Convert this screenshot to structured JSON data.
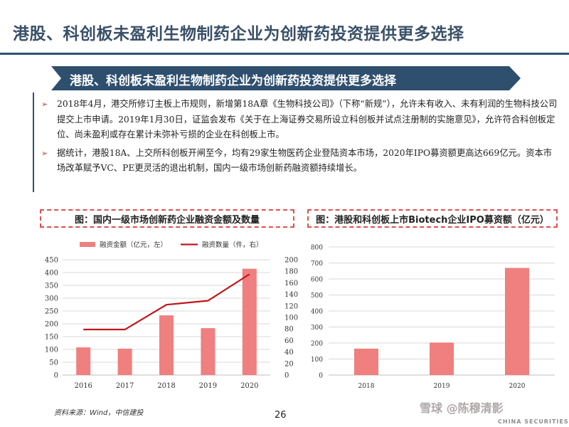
{
  "header": {
    "title": "港股、科创板未盈利生物制药企业为创新药投资提供更多选择",
    "banner": "港股、科创板未盈利生物制药企业为创新药投资提供更多选择"
  },
  "bullets": [
    "2018年4月，港交所修订主板上市规则，新增第18A章《生物科技公司》（下称“新规”），允许未有收入、未有利润的生物科技公司提交上市申请。2019年1月30日，证监会发布《关于在上海证券交易所设立科创板并试点注册制的实施意见》，允许符合科创板定位、尚未盈利或存在累计未弥补亏损的企业在科创板上市。",
    "据统计，港股18A、上交所科创板开闸至今，均有29家生物医药企业登陆资本市场，2020年IPO募资额更高达669亿元。资本市场改革赋予VC、PE更灵活的退出机制，国内一级市场创新药融资额持续增长。"
  ],
  "chart_data": [
    {
      "type": "bar+line",
      "title": "图：国内一级市场创新药企业融资金额及数量",
      "categories": [
        "2016",
        "2017",
        "2018",
        "2019",
        "2020"
      ],
      "series": [
        {
          "name": "融资金额（亿元，左）",
          "type": "bar",
          "axis": "left",
          "values": [
            108,
            103,
            233,
            183,
            415
          ],
          "color": "#f07f7f"
        },
        {
          "name": "融资数量（件，右）",
          "type": "line",
          "axis": "right",
          "values": [
            79,
            79,
            122,
            129,
            175
          ],
          "color": "#c0161b"
        }
      ],
      "y_left": {
        "min": 0,
        "max": 450,
        "ticks": [
          "0",
          "50",
          "100",
          "150",
          "200",
          "250",
          "300",
          "350",
          "400",
          "450"
        ]
      },
      "y_right": {
        "min": 0,
        "max": 200,
        "ticks": [
          "0",
          "20",
          "40",
          "60",
          "80",
          "100",
          "120",
          "140",
          "160",
          "180",
          "200"
        ]
      },
      "legend_position": "top",
      "grid": true
    },
    {
      "type": "bar",
      "title": "图：港股和科创板上市Biotech企业IPO募资额（亿元）",
      "categories": [
        "2018",
        "2019",
        "2020"
      ],
      "values": [
        165,
        203,
        669
      ],
      "color": "#f07f7f",
      "ylim": [
        0,
        800
      ],
      "ticks": [
        "0",
        "100",
        "200",
        "300",
        "400",
        "500",
        "600",
        "700",
        "800"
      ],
      "grid": true
    }
  ],
  "footer": {
    "source": "资料来源：Wind，中信建投",
    "page_number": "26",
    "watermark": "雪球 @陈穆清影",
    "watermark_sub": "CHINA SECURITIES"
  },
  "colors": {
    "title": "#3a5068",
    "banner": "#2f4f6f",
    "accent": "#c0392b",
    "bar": "#f07f7f",
    "line": "#c0161b"
  }
}
